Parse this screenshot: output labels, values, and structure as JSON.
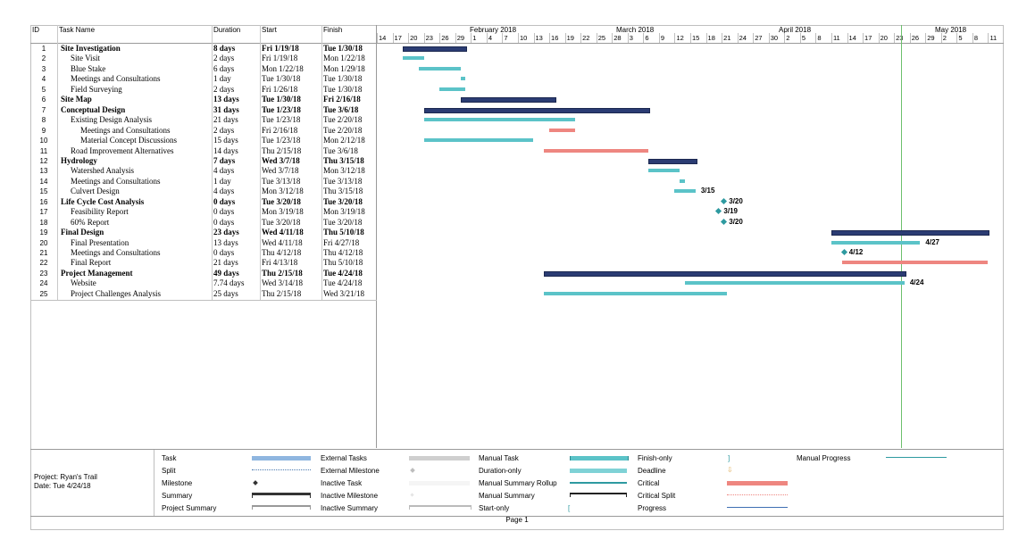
{
  "columns": {
    "id": "ID",
    "task_name": "Task Name",
    "duration": "Duration",
    "start": "Start",
    "finish": "Finish"
  },
  "timeline": {
    "months": [
      "February 2018",
      "March 2018",
      "April 2018",
      "May 2018"
    ],
    "days": [
      "14",
      "17",
      "20",
      "23",
      "26",
      "29",
      "1",
      "4",
      "7",
      "10",
      "13",
      "16",
      "19",
      "22",
      "25",
      "28",
      "3",
      "6",
      "9",
      "12",
      "15",
      "18",
      "21",
      "24",
      "27",
      "30",
      "2",
      "5",
      "8",
      "11",
      "14",
      "17",
      "20",
      "23",
      "26",
      "29",
      "2",
      "5",
      "8",
      "11"
    ]
  },
  "tasks": [
    {
      "id": "1",
      "name": "Site Investigation",
      "duration": "8 days",
      "start": "Fri 1/19/18",
      "finish": "Tue 1/30/18",
      "summary": true
    },
    {
      "id": "2",
      "name": "Site Visit",
      "duration": "2 days",
      "start": "Fri 1/19/18",
      "finish": "Mon 1/22/18",
      "summary": false
    },
    {
      "id": "3",
      "name": "Blue Stake",
      "duration": "6 days",
      "start": "Mon 1/22/18",
      "finish": "Mon 1/29/18",
      "summary": false
    },
    {
      "id": "4",
      "name": "Meetings and Consultations",
      "duration": "1 day",
      "start": "Tue 1/30/18",
      "finish": "Tue 1/30/18",
      "summary": false
    },
    {
      "id": "5",
      "name": "Field Surveying",
      "duration": "2 days",
      "start": "Fri 1/26/18",
      "finish": "Tue 1/30/18",
      "summary": false
    },
    {
      "id": "6",
      "name": "Site Map",
      "duration": "13 days",
      "start": "Tue 1/30/18",
      "finish": "Fri 2/16/18",
      "summary": true
    },
    {
      "id": "7",
      "name": "Conceptual Design",
      "duration": "31 days",
      "start": "Tue 1/23/18",
      "finish": "Tue 3/6/18",
      "summary": true
    },
    {
      "id": "8",
      "name": "Existing Design Analysis",
      "duration": "21 days",
      "start": "Tue 1/23/18",
      "finish": "Tue 2/20/18",
      "summary": false
    },
    {
      "id": "9",
      "name": "Meetings and Consultations",
      "duration": "2 days",
      "start": "Fri 2/16/18",
      "finish": "Tue 2/20/18",
      "summary": false
    },
    {
      "id": "10",
      "name": "Material Concept Discussions",
      "duration": "15 days",
      "start": "Tue 1/23/18",
      "finish": "Mon 2/12/18",
      "summary": false
    },
    {
      "id": "11",
      "name": "Road Improvement Alternatives",
      "duration": "14 days",
      "start": "Thu 2/15/18",
      "finish": "Tue 3/6/18",
      "summary": false
    },
    {
      "id": "12",
      "name": "Hydrology",
      "duration": "7 days",
      "start": "Wed 3/7/18",
      "finish": "Thu 3/15/18",
      "summary": true
    },
    {
      "id": "13",
      "name": "Watershed Analysis",
      "duration": "4 days",
      "start": "Wed 3/7/18",
      "finish": "Mon 3/12/18",
      "summary": false
    },
    {
      "id": "14",
      "name": "Meetings and Consultations",
      "duration": "1 day",
      "start": "Tue 3/13/18",
      "finish": "Tue 3/13/18",
      "summary": false
    },
    {
      "id": "15",
      "name": "Culvert Design",
      "duration": "4 days",
      "start": "Mon 3/12/18",
      "finish": "Thu 3/15/18",
      "summary": false
    },
    {
      "id": "16",
      "name": "Life Cycle Cost Analysis",
      "duration": "0 days",
      "start": "Tue 3/20/18",
      "finish": "Tue 3/20/18",
      "summary": true
    },
    {
      "id": "17",
      "name": "Feasibility Report",
      "duration": "0 days",
      "start": "Mon 3/19/18",
      "finish": "Mon 3/19/18",
      "summary": false
    },
    {
      "id": "18",
      "name": "60% Report",
      "duration": "0 days",
      "start": "Tue 3/20/18",
      "finish": "Tue 3/20/18",
      "summary": false
    },
    {
      "id": "19",
      "name": "Final Design",
      "duration": "23 days",
      "start": "Wed 4/11/18",
      "finish": "Thu 5/10/18",
      "summary": true
    },
    {
      "id": "20",
      "name": "Final Presentation",
      "duration": "13 days",
      "start": "Wed 4/11/18",
      "finish": "Fri 4/27/18",
      "summary": false
    },
    {
      "id": "21",
      "name": "Meetings and Consultations",
      "duration": "0 days",
      "start": "Thu 4/12/18",
      "finish": "Thu 4/12/18",
      "summary": false
    },
    {
      "id": "22",
      "name": "Final Report",
      "duration": "21 days",
      "start": "Fri 4/13/18",
      "finish": "Thu 5/10/18",
      "summary": false
    },
    {
      "id": "23",
      "name": "Project Management",
      "duration": "49 days",
      "start": "Thu 2/15/18",
      "finish": "Tue 4/24/18",
      "summary": true
    },
    {
      "id": "24",
      "name": "Website",
      "duration": "7.74 days",
      "start": "Wed 3/14/18",
      "finish": "Tue 4/24/18",
      "summary": false
    },
    {
      "id": "25",
      "name": "Project Challenges Analysis",
      "duration": "25 days",
      "start": "Thu 2/15/18",
      "finish": "Wed 3/21/18",
      "summary": false
    }
  ],
  "milestone_labels": {
    "t15": "3/15",
    "t16": "3/20",
    "t17": "3/19",
    "t18": "3/20",
    "t20": "4/27",
    "t21": "4/12",
    "t24": "4/24"
  },
  "legend": {
    "project": "Project: Ryan's Trail",
    "date": "Date: Tue 4/24/18",
    "col1": [
      "Task",
      "Split",
      "Milestone",
      "Summary",
      "Project Summary"
    ],
    "col2": [
      "External Tasks",
      "External Milestone",
      "Inactive Task",
      "Inactive Milestone",
      "Inactive Summary"
    ],
    "col3": [
      "Manual Task",
      "Duration-only",
      "Manual Summary Rollup",
      "Manual Summary",
      "Start-only"
    ],
    "col4": [
      "Finish-only",
      "Deadline",
      "Critical",
      "Critical Split",
      "Progress"
    ],
    "col5": [
      "Manual Progress"
    ]
  },
  "footer": "Page 1",
  "colors": {
    "summary": "#2b3c73",
    "task": "#5bc3c8",
    "critical": "#ee8680",
    "today": "#6cbf6c"
  }
}
